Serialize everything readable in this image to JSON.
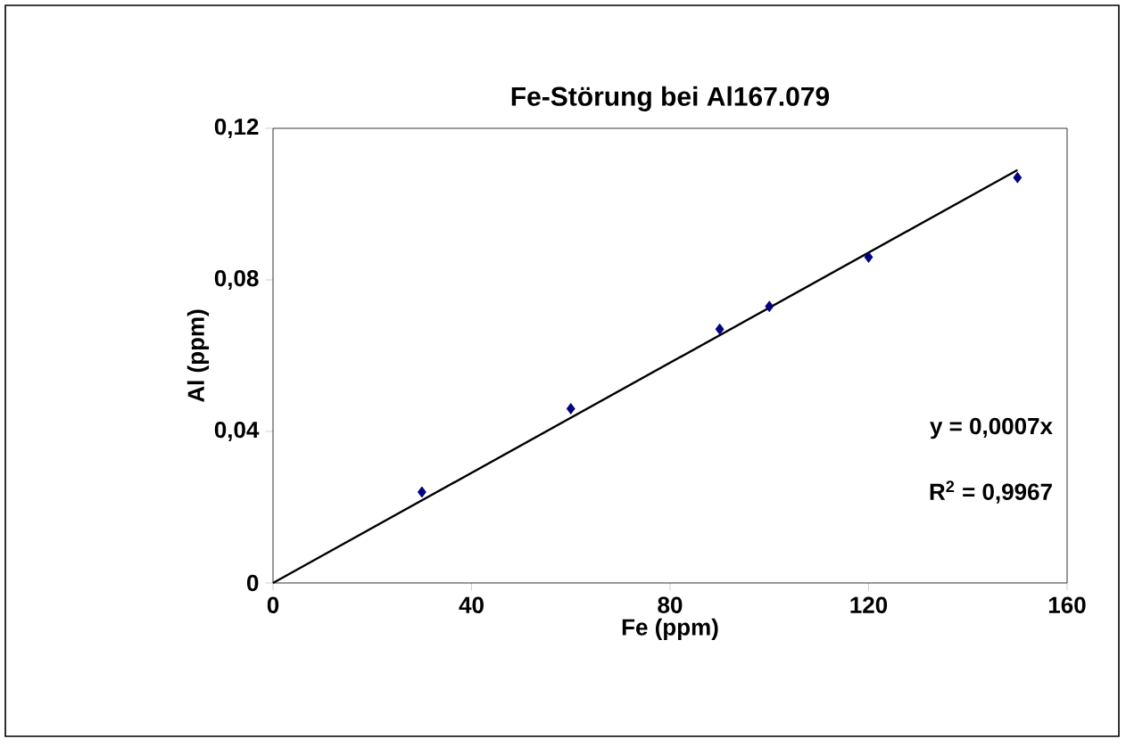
{
  "chart_data": {
    "type": "scatter",
    "title": "Fe-Störung bei Al167.079",
    "xlabel": "Fe (ppm)",
    "ylabel": "Al (ppm)",
    "xlim": [
      0,
      160
    ],
    "ylim": [
      0,
      0.12
    ],
    "xticks": [
      0,
      40,
      80,
      120,
      160
    ],
    "yticks": [
      0,
      {
        "value": 0.04,
        "label": "0,04"
      },
      {
        "value": 0.08,
        "label": "0,08"
      },
      {
        "value": 0.12,
        "label": "0,12"
      }
    ],
    "grid": false,
    "marker": "diamond",
    "series": [
      {
        "color": "#000080",
        "x": [
          30,
          60,
          90,
          100,
          120,
          150
        ],
        "values": [
          0.024,
          0.046,
          0.067,
          0.073,
          0.086,
          0.107
        ]
      },
      {
        "type": "line",
        "color": "#000000",
        "marker": "none",
        "x": [
          0,
          150
        ],
        "values": [
          0,
          0.109
        ]
      }
    ],
    "annotations": [
      "y = 0,0007x",
      "R$^{2}$ = 0,9967"
    ]
  }
}
